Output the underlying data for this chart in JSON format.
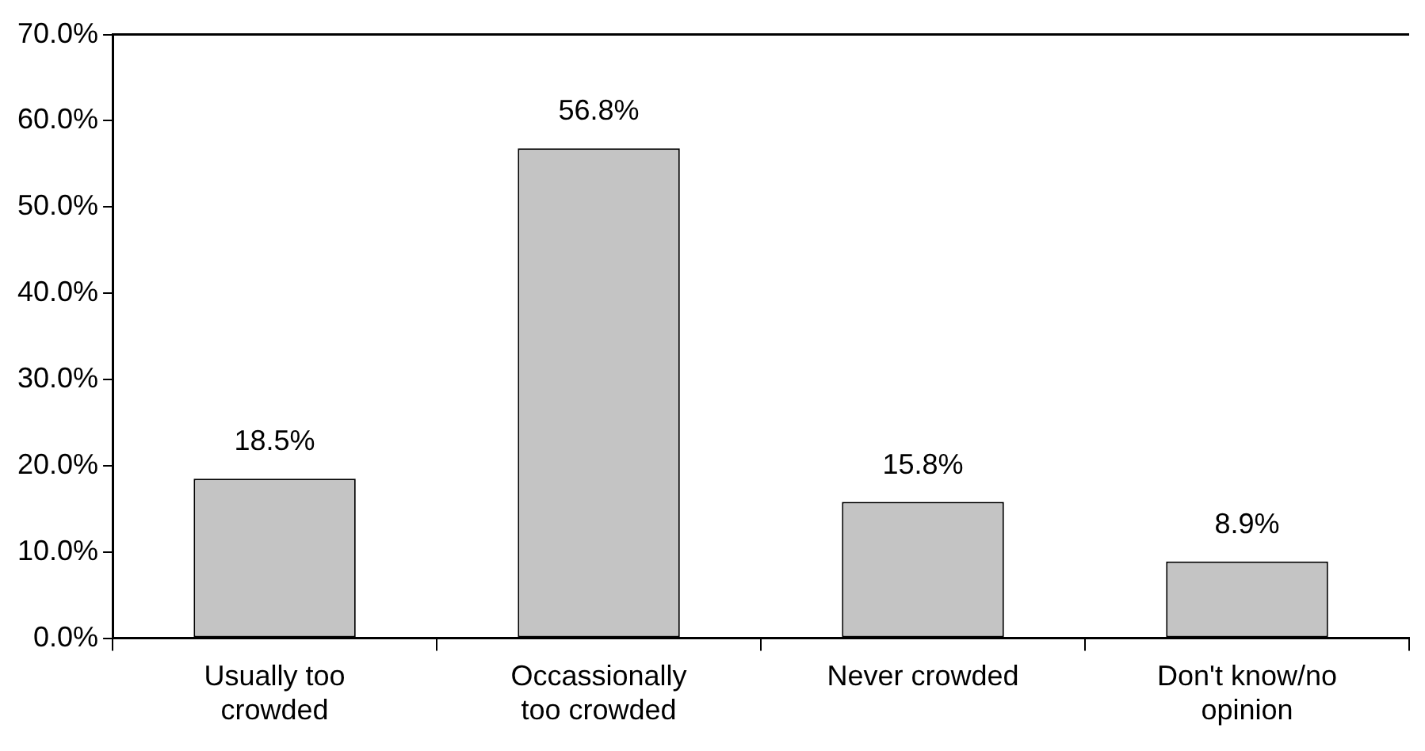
{
  "chart_data": {
    "type": "bar",
    "categories": [
      "Usually too crowded",
      "Occassionally too crowded",
      "Never crowded",
      "Don't know/no opinion"
    ],
    "values": [
      18.5,
      56.8,
      15.8,
      8.9
    ],
    "color": "#c4c4c4",
    "value_labels": [
      "18.5%",
      "56.8%",
      "15.8%",
      "8.9%"
    ],
    "ylim": [
      0,
      70
    ],
    "yticks": [
      {
        "value": 0,
        "label": "0.0%"
      },
      {
        "value": 10,
        "label": "10.0%"
      },
      {
        "value": 20,
        "label": "20.0%"
      },
      {
        "value": 30,
        "label": "30.0%"
      },
      {
        "value": 40,
        "label": "40.0%"
      },
      {
        "value": 50,
        "label": "50.0%"
      },
      {
        "value": 60,
        "label": "60.0%"
      },
      {
        "value": 70,
        "label": "70.0%"
      }
    ],
    "grid": false,
    "legend": false
  }
}
